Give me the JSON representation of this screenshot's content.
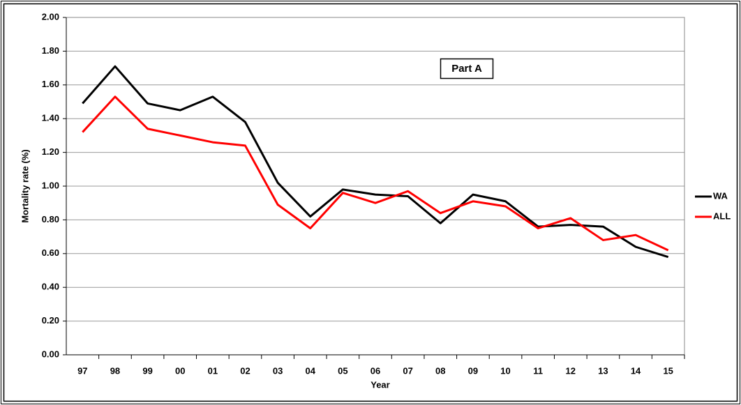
{
  "chart_data": {
    "type": "line",
    "y_label": "Mortality rate (%)",
    "x_label": "Year",
    "annotation": "Part A",
    "categories": [
      "97",
      "98",
      "99",
      "00",
      "01",
      "02",
      "03",
      "04",
      "05",
      "06",
      "07",
      "08",
      "09",
      "10",
      "11",
      "12",
      "13",
      "14",
      "15"
    ],
    "series": [
      {
        "name": "WA",
        "color": "#000000",
        "values": [
          1.49,
          1.71,
          1.49,
          1.45,
          1.53,
          1.38,
          1.02,
          0.82,
          0.98,
          0.95,
          0.94,
          0.78,
          0.95,
          0.91,
          0.76,
          0.77,
          0.76,
          0.64,
          0.58
        ]
      },
      {
        "name": "ALL",
        "color": "#ff0000",
        "values": [
          1.32,
          1.53,
          1.34,
          1.3,
          1.26,
          1.24,
          0.89,
          0.75,
          0.96,
          0.9,
          0.97,
          0.84,
          0.91,
          0.88,
          0.75,
          0.81,
          0.68,
          0.71,
          0.62
        ]
      }
    ],
    "ylim": [
      0,
      2
    ],
    "yticks": [
      {
        "value": 0,
        "label": "0.00"
      },
      {
        "value": 0.2,
        "label": "0.20"
      },
      {
        "value": 0.4,
        "label": "0.40"
      },
      {
        "value": 0.6,
        "label": "0.60"
      },
      {
        "value": 0.8,
        "label": "0.80"
      },
      {
        "value": 1,
        "label": "1.00"
      },
      {
        "value": 1.2,
        "label": "1.20"
      },
      {
        "value": 1.4,
        "label": "1.40"
      },
      {
        "value": 1.6,
        "label": "1.60"
      },
      {
        "value": 1.8,
        "label": "1.80"
      },
      {
        "value": 2,
        "label": "2.00"
      }
    ],
    "grid": true,
    "legend": "right"
  }
}
